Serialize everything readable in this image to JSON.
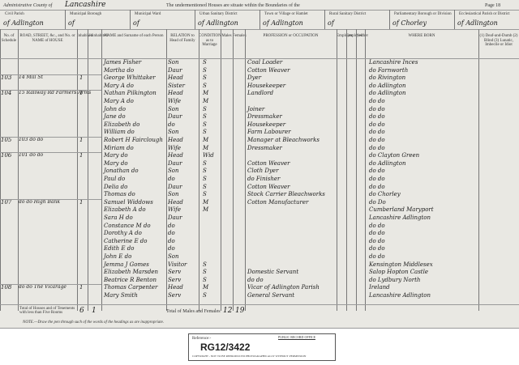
{
  "header": {
    "admin_county_label": "Administrative County of",
    "county": "Lancashire",
    "intro": "The undermentioned Houses are situate within the Boundaries of the",
    "page": "Page 18"
  },
  "parishes": [
    {
      "label": "Civil Parish",
      "value": "of Adlington"
    },
    {
      "label": "Municipal Borough",
      "value": "of"
    },
    {
      "label": "Municipal Ward",
      "value": "of"
    },
    {
      "label": "Urban Sanitary District",
      "value": "of Adlington"
    },
    {
      "label": "Town or Village or Hamlet",
      "value": "of Adlington"
    },
    {
      "label": "Rural Sanitary District",
      "value": "of"
    },
    {
      "label": "Parliamentary Borough or Division",
      "value": "of Chorley"
    },
    {
      "label": "Ecclesiastical Parish or District",
      "value": "of Adlington"
    }
  ],
  "columns": [
    "No. of Schedule",
    "ROAD, STREET, &c., and No. or NAME of HOUSE",
    "Inhabited",
    "Uninhabited",
    "NAME and Surname of each Person",
    "RELATION to Head of Family",
    "CONDITION as to Marriage",
    "Males",
    "Females",
    "PROFESSION or OCCUPATION",
    "Employer",
    "Employed",
    "Neither",
    "WHERE BORN",
    "(1) Deaf-and-Dumb (2) Blind (3) Lunatic, Imbecile or Idiot"
  ],
  "rows": [
    {
      "name": "James Fisher",
      "relation": "Son",
      "condition": "S",
      "occupation": "Coal Loader",
      "born": "Lancashire Inces"
    },
    {
      "name": "Martha do",
      "relation": "Daur",
      "condition": "S",
      "occupation": "Cotton Weaver",
      "born": "do Farnworth"
    },
    {
      "schedule": "103",
      "address": "14 Mill St",
      "inhabited": "1",
      "name": "George Whittaker",
      "relation": "Head",
      "condition": "S",
      "occupation": "Dyer",
      "born": "do Rivington"
    },
    {
      "name": "Mary A do",
      "relation": "Sister",
      "condition": "S",
      "occupation": "Housekeeper",
      "born": "do Adlington"
    },
    {
      "schedule": "104",
      "address": "15 Railway Rd Farmers Arms",
      "inhabited": "1",
      "name": "Nathan Pilkington",
      "relation": "Head",
      "condition": "M",
      "occupation": "Landlord",
      "born": "do Adlington"
    },
    {
      "name": "Mary A do",
      "relation": "Wife",
      "condition": "M",
      "born": "do do"
    },
    {
      "name": "John do",
      "relation": "Son",
      "condition": "S",
      "occupation": "Joiner",
      "born": "do do"
    },
    {
      "name": "Jane do",
      "relation": "Daur",
      "condition": "S",
      "occupation": "Dressmaker",
      "born": "do do"
    },
    {
      "name": "Elizabeth do",
      "relation": "do",
      "condition": "S",
      "occupation": "Housekeeper",
      "born": "do do"
    },
    {
      "name": "William do",
      "relation": "Son",
      "condition": "S",
      "occupation": "Farm Labourer",
      "born": "do do"
    },
    {
      "schedule": "105",
      "address": "103 do do",
      "inhabited": "1",
      "name": "Robert H Fairclough",
      "relation": "Head",
      "condition": "M",
      "occupation": "Manager at Bleachworks",
      "born": "do do"
    },
    {
      "name": "Miriam do",
      "relation": "Wife",
      "condition": "M",
      "occupation": "Dressmaker",
      "born": "do do"
    },
    {
      "schedule": "106",
      "address": "101 do do",
      "inhabited": "1",
      "name": "Mary do",
      "relation": "Head",
      "condition": "Wid",
      "born": "do Clayton Green"
    },
    {
      "name": "Mary do",
      "relation": "Daur",
      "condition": "S",
      "occupation": "Cotton Weaver",
      "born": "do Adlington"
    },
    {
      "name": "Jonathan do",
      "relation": "Son",
      "condition": "S",
      "occupation": "Cloth Dyer",
      "born": "do do"
    },
    {
      "name": "Paul do",
      "relation": "do",
      "condition": "S",
      "occupation": "do Finisher",
      "born": "do do"
    },
    {
      "name": "Delia do",
      "relation": "Daur",
      "condition": "S",
      "occupation": "Cotton Weaver",
      "born": "do do"
    },
    {
      "name": "Thomas do",
      "relation": "Son",
      "condition": "S",
      "occupation": "Stock Carrier Bleachworks",
      "born": "do Chorley"
    },
    {
      "schedule": "107",
      "address": "do do High Bank",
      "inhabited": "1",
      "name": "Samuel Widdows",
      "relation": "Head",
      "condition": "M",
      "occupation": "Cotton Manufacturer",
      "born": "do Do"
    },
    {
      "name": "Elizabeth A do",
      "relation": "Wife",
      "condition": "M",
      "born": "Cumberland Maryport"
    },
    {
      "name": "Sara H do",
      "relation": "Daur",
      "born": "Lancashire Adlington"
    },
    {
      "name": "Constance M do",
      "relation": "do",
      "born": "do do"
    },
    {
      "name": "Dorothy A do",
      "relation": "do",
      "born": "do do"
    },
    {
      "name": "Catherine E do",
      "relation": "do",
      "born": "do do"
    },
    {
      "name": "Edith E do",
      "relation": "do",
      "born": "do do"
    },
    {
      "name": "John E do",
      "relation": "Son",
      "born": "do do"
    },
    {
      "name": "Jemma J Gomes",
      "relation": "Visitor",
      "condition": "S",
      "born": "Kensington Middlesex"
    },
    {
      "name": "Elizabeth Marsden",
      "relation": "Serv",
      "condition": "S",
      "occupation": "Domestic Servant",
      "born": "Salop Hopton Castle"
    },
    {
      "name": "Beatrice R Benton",
      "relation": "Serv",
      "condition": "S",
      "occupation": "do do",
      "born": "do Lydbury North"
    },
    {
      "schedule": "108",
      "address": "do do The Vicarage",
      "inhabited": "1",
      "name": "Thomas Carpenter",
      "relation": "Head",
      "condition": "M",
      "occupation": "Vicar of Adlington Parish",
      "born": "Ireland"
    },
    {
      "name": "Mary Smith",
      "relation": "Serv",
      "condition": "S",
      "occupation": "General Servant",
      "born": "Lancashire Adlington"
    }
  ],
  "totals": {
    "houses_label": "Total of Houses and of Tenements with less than Five Rooms",
    "inhabited": "6",
    "uninhabited": "1",
    "persons_label": "Total of Males and Females",
    "males": "12",
    "females": "19"
  },
  "note": "NOTE.—Draw the pen through such of the words of the headings as are inappropriate.",
  "footer": {
    "reference_label": "Reference:-",
    "office": "PUBLIC RECORD OFFICE",
    "reference": "RG12/3422",
    "copyright": "COPYRIGHT - NOT TO BE REPRODUCED PHOTOGRAPHICALLY WITHOUT PERMISSION"
  }
}
